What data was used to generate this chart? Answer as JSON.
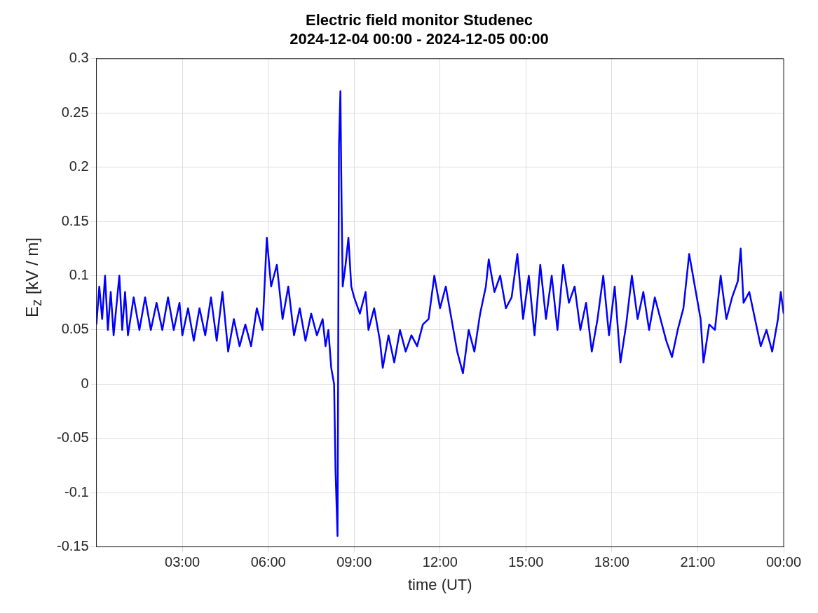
{
  "chart_data": {
    "type": "line",
    "title": "Electric field monitor Studenec\n2024-12-04 00:00 - 2024-12-05 00:00",
    "xlabel": "time (UT)",
    "ylabel": "E$_{z}$ [kV / m]",
    "xlim": [
      0,
      24
    ],
    "xticks": [
      {
        "value": 3,
        "label": "03:00"
      },
      {
        "value": 6,
        "label": "06:00"
      },
      {
        "value": 9,
        "label": "09:00"
      },
      {
        "value": 12,
        "label": "12:00"
      },
      {
        "value": 15,
        "label": "15:00"
      },
      {
        "value": 18,
        "label": "18:00"
      },
      {
        "value": 21,
        "label": "21:00"
      },
      {
        "value": 24,
        "label": "00:00"
      }
    ],
    "ylim": [
      -0.15,
      0.3
    ],
    "yticks": [
      -0.15,
      -0.1,
      -0.05,
      0,
      0.05,
      0.1,
      0.15,
      0.2,
      0.25,
      0.3
    ],
    "grid": true,
    "marker": "none",
    "line_style": "solid",
    "x": [
      0,
      0.1,
      0.2,
      0.3,
      0.4,
      0.5,
      0.6,
      0.8,
      0.9,
      1.0,
      1.1,
      1.3,
      1.5,
      1.7,
      1.9,
      2.1,
      2.3,
      2.5,
      2.7,
      2.9,
      3.0,
      3.2,
      3.4,
      3.6,
      3.8,
      4.0,
      4.2,
      4.4,
      4.6,
      4.8,
      5.0,
      5.2,
      5.4,
      5.6,
      5.8,
      5.95,
      6.1,
      6.3,
      6.5,
      6.7,
      6.9,
      7.1,
      7.3,
      7.5,
      7.7,
      7.9,
      8.0,
      8.1,
      8.2,
      8.3,
      8.35,
      8.42,
      8.47,
      8.52,
      8.56,
      8.6,
      8.7,
      8.8,
      8.9,
      9.0,
      9.2,
      9.4,
      9.5,
      9.7,
      9.9,
      10.0,
      10.2,
      10.4,
      10.6,
      10.8,
      11.0,
      11.2,
      11.4,
      11.6,
      11.8,
      12.0,
      12.2,
      12.4,
      12.6,
      12.8,
      13.0,
      13.2,
      13.4,
      13.6,
      13.7,
      13.9,
      14.1,
      14.3,
      14.5,
      14.7,
      14.9,
      15.1,
      15.3,
      15.5,
      15.7,
      15.9,
      16.1,
      16.3,
      16.5,
      16.7,
      16.9,
      17.1,
      17.3,
      17.5,
      17.7,
      17.9,
      18.1,
      18.3,
      18.5,
      18.7,
      18.9,
      19.1,
      19.3,
      19.5,
      19.7,
      19.9,
      20.1,
      20.3,
      20.5,
      20.7,
      20.9,
      21.1,
      21.2,
      21.4,
      21.6,
      21.8,
      22.0,
      22.2,
      22.4,
      22.5,
      22.6,
      22.8,
      23.0,
      23.2,
      23.4,
      23.6,
      23.8,
      23.9,
      24.0
    ],
    "series": [
      {
        "color": "#0000ff",
        "values": [
          0.055,
          0.09,
          0.06,
          0.1,
          0.05,
          0.085,
          0.045,
          0.1,
          0.05,
          0.085,
          0.045,
          0.08,
          0.05,
          0.08,
          0.05,
          0.075,
          0.05,
          0.08,
          0.05,
          0.075,
          0.045,
          0.07,
          0.04,
          0.07,
          0.045,
          0.08,
          0.04,
          0.085,
          0.03,
          0.06,
          0.035,
          0.055,
          0.035,
          0.07,
          0.05,
          0.135,
          0.09,
          0.11,
          0.06,
          0.09,
          0.045,
          0.07,
          0.04,
          0.065,
          0.045,
          0.06,
          0.035,
          0.05,
          0.015,
          0.0,
          -0.08,
          -0.14,
          0.22,
          0.27,
          0.17,
          0.09,
          0.11,
          0.135,
          0.09,
          0.08,
          0.065,
          0.085,
          0.05,
          0.07,
          0.04,
          0.015,
          0.045,
          0.02,
          0.05,
          0.03,
          0.045,
          0.035,
          0.055,
          0.06,
          0.1,
          0.07,
          0.09,
          0.06,
          0.03,
          0.01,
          0.05,
          0.03,
          0.065,
          0.09,
          0.115,
          0.085,
          0.1,
          0.07,
          0.08,
          0.12,
          0.06,
          0.1,
          0.045,
          0.11,
          0.06,
          0.1,
          0.05,
          0.11,
          0.075,
          0.09,
          0.05,
          0.075,
          0.03,
          0.06,
          0.1,
          0.045,
          0.09,
          0.02,
          0.055,
          0.1,
          0.06,
          0.085,
          0.05,
          0.08,
          0.06,
          0.04,
          0.025,
          0.05,
          0.07,
          0.12,
          0.09,
          0.06,
          0.02,
          0.055,
          0.05,
          0.1,
          0.06,
          0.08,
          0.095,
          0.125,
          0.075,
          0.085,
          0.06,
          0.035,
          0.05,
          0.03,
          0.06,
          0.085,
          0.065
        ]
      }
    ]
  }
}
